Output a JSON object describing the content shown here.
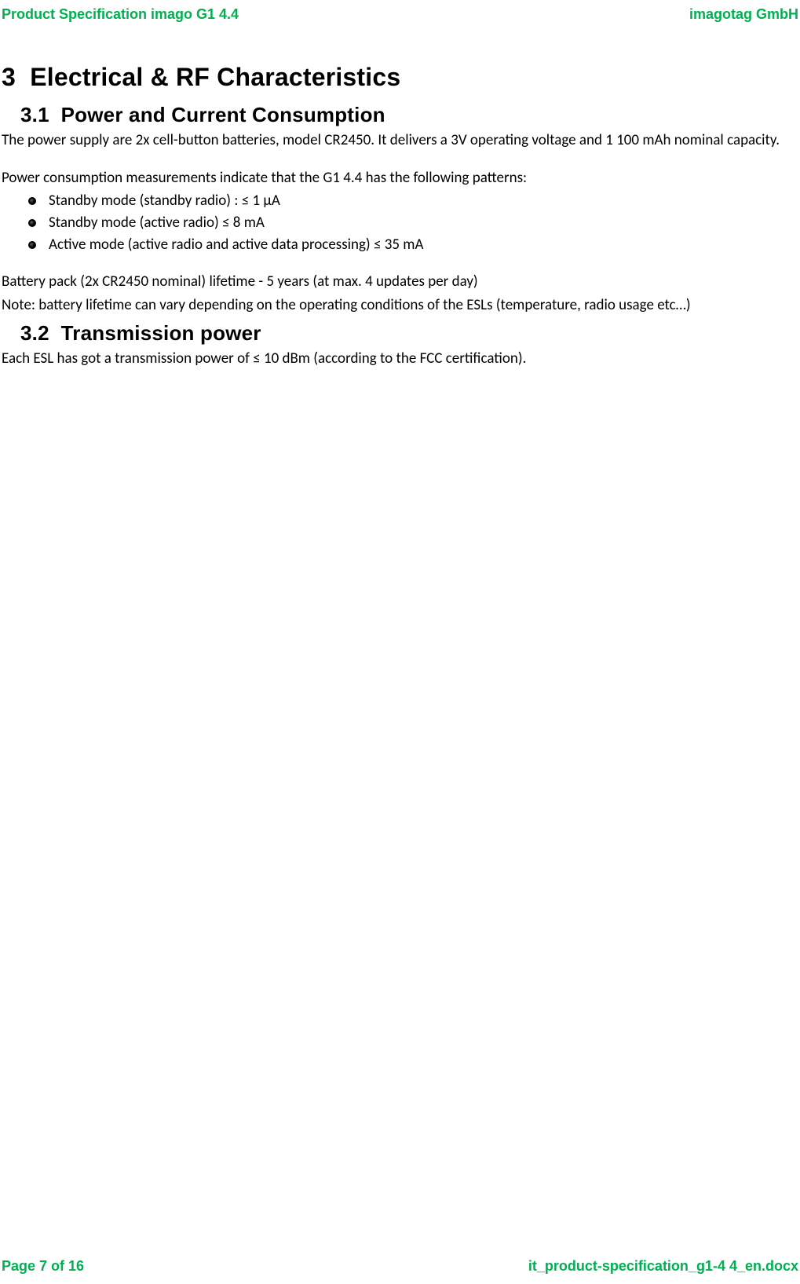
{
  "header": {
    "left": "Product Specification imago G1 4.4",
    "right": "imagotag GmbH"
  },
  "footer": {
    "left": "Page 7 of 16",
    "right": "it_product-specification_g1-4 4_en.docx"
  },
  "section": {
    "number": "3",
    "title": "Electrical & RF Characteristics",
    "sub1": {
      "number": "3.1",
      "title": "Power and Current Consumption",
      "p1": "The power supply are 2x cell-button batteries, model CR2450. It delivers a 3V operating voltage and 1 100 mAh nominal capacity.",
      "p2": "Power consumption measurements indicate that the G1 4.4 has the following patterns:",
      "bullets": [
        "Standby mode (standby radio) : ≤ 1 µA",
        "Standby mode (active radio) ≤ 8 mA",
        "Active mode (active radio and active data processing) ≤ 35 mA"
      ],
      "p3": "Battery pack (2x CR2450 nominal) lifetime - 5 years (at max. 4 updates per day)",
      "p4": "Note: battery lifetime can vary depending on the operating conditions of the ESLs (temperature, radio usage etc…)"
    },
    "sub2": {
      "number": "3.2",
      "title": "Transmission power",
      "p1": "Each ESL has got a transmission power of ≤ 10 dBm (according to the FCC certification)."
    }
  },
  "colors": {
    "accent": "#00b050",
    "text": "#000000",
    "background": "#ffffff"
  }
}
